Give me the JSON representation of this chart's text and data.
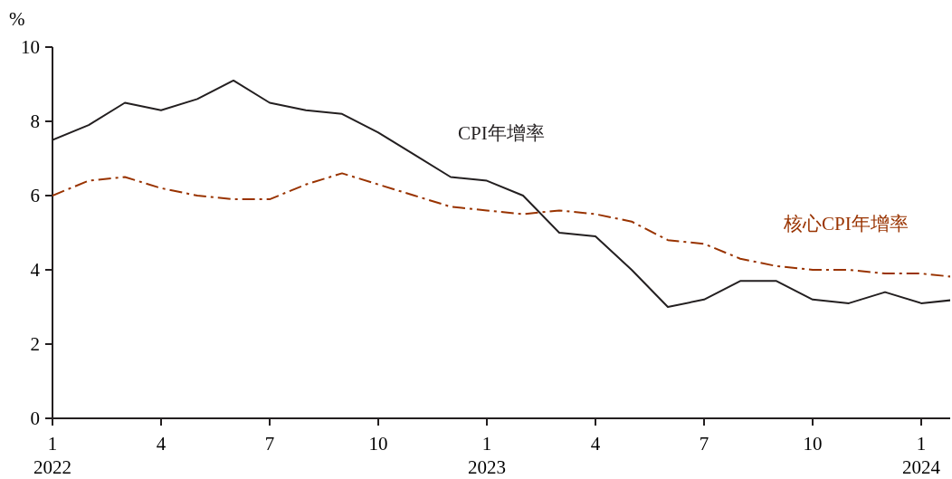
{
  "chart_data": {
    "type": "line",
    "ylabel": "%",
    "categories": [
      "1\n2022",
      null,
      null,
      "4",
      null,
      null,
      "7",
      null,
      null,
      "10",
      null,
      null,
      "1\n2023",
      null,
      null,
      "4",
      null,
      null,
      "7",
      null,
      null,
      "10",
      null,
      null,
      "1\n2024",
      null
    ],
    "series": [
      {
        "name": "CPI年增率",
        "color": "#231f20",
        "line_style": "solid",
        "values": [
          7.5,
          7.9,
          8.5,
          8.3,
          8.6,
          9.1,
          8.5,
          8.3,
          8.2,
          7.7,
          7.1,
          6.5,
          6.4,
          6.0,
          5.0,
          4.9,
          4.0,
          3.0,
          3.2,
          3.7,
          3.7,
          3.2,
          3.1,
          3.4,
          3.1,
          3.2
        ]
      },
      {
        "name": "核心CPI年增率",
        "color": "#993300",
        "line_style": "dashed",
        "values": [
          6.0,
          6.4,
          6.5,
          6.2,
          6.0,
          5.9,
          5.9,
          6.3,
          6.6,
          6.3,
          6.0,
          5.7,
          5.6,
          5.5,
          5.6,
          5.5,
          5.3,
          4.8,
          4.7,
          4.3,
          4.1,
          4.0,
          4.0,
          3.9,
          3.9,
          3.8
        ]
      }
    ],
    "ylim": [
      0,
      10
    ],
    "yticks": [
      0,
      2,
      4,
      6,
      8,
      10
    ],
    "grid": false,
    "legend": false,
    "marker": "none"
  }
}
